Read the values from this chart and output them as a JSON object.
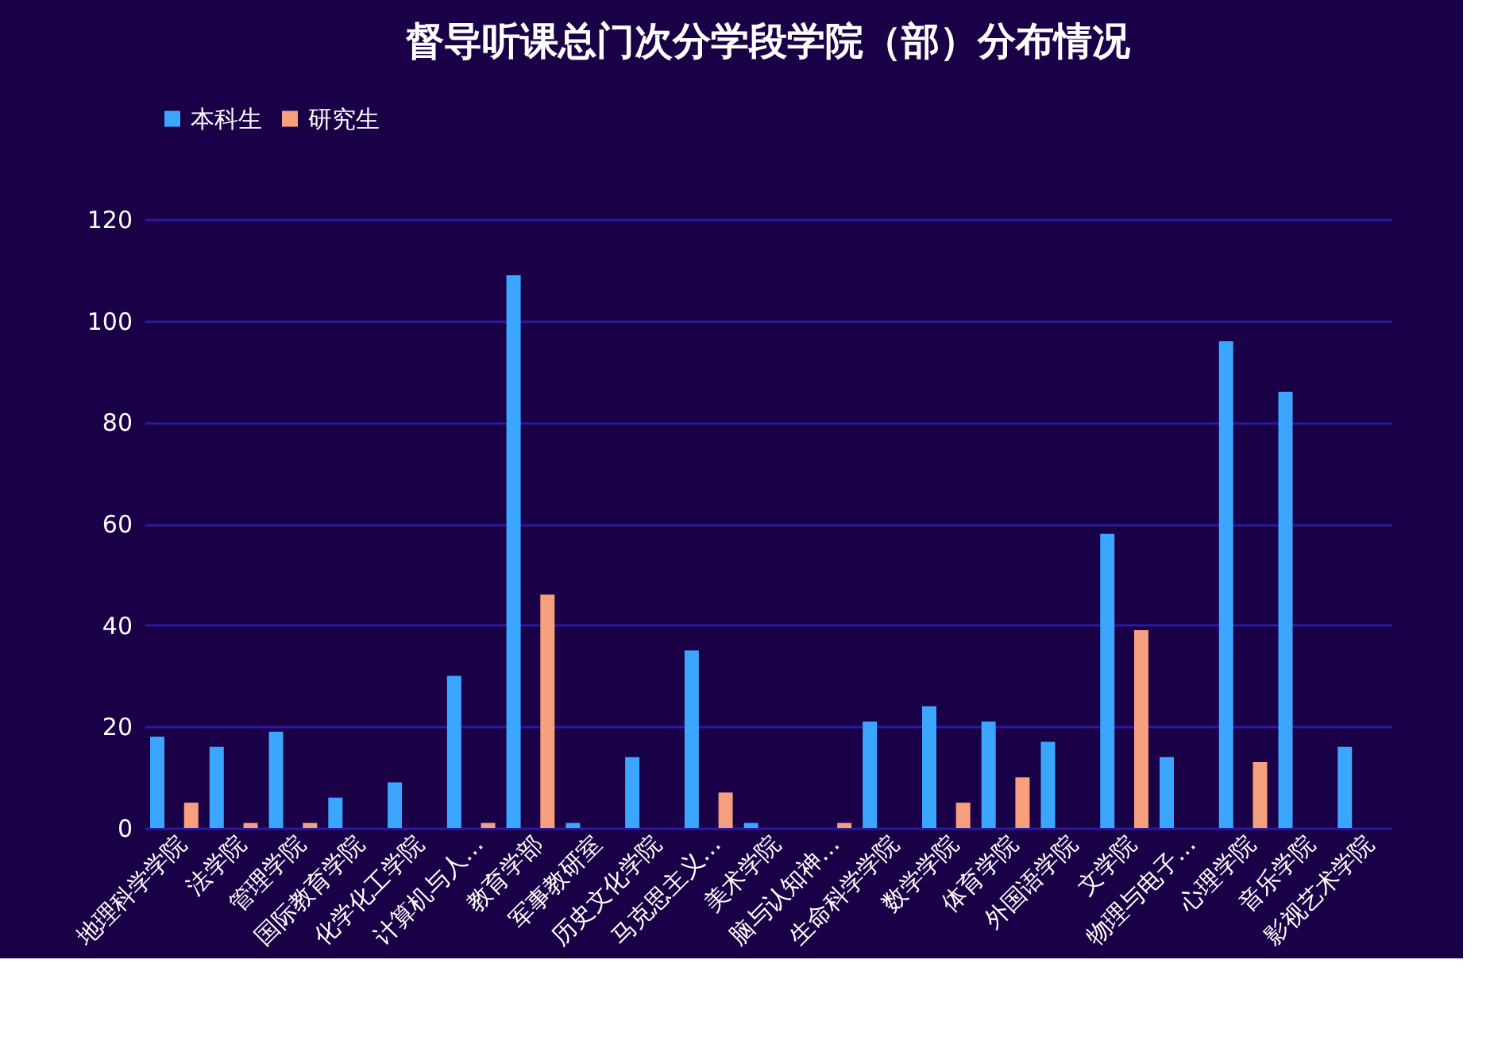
{
  "chart_data": {
    "type": "bar",
    "title": "督导听课总门次分学段学院（部）分布情况",
    "categories": [
      "地理科学学院",
      "法学院",
      "管理学院",
      "国际教育学院",
      "化学化工学院",
      "计算机与人…",
      "教育学部",
      "军事教研室",
      "历史文化学院",
      "马克思主义…",
      "美术学院",
      "脑与认知神…",
      "生命科学学院",
      "数学学院",
      "体育学院",
      "外国语学院",
      "文学院",
      "物理与电子…",
      "心理学院",
      "音乐学院",
      "影视艺术学院"
    ],
    "series": [
      {
        "name": "本科生",
        "color": "#3aa6ff",
        "values": [
          18,
          16,
          19,
          6,
          9,
          30,
          109,
          1,
          14,
          35,
          1,
          null,
          21,
          24,
          21,
          17,
          58,
          14,
          96,
          86,
          16
        ]
      },
      {
        "name": "研究生",
        "color": "#f7a07e",
        "values": [
          5,
          1,
          1,
          null,
          null,
          1,
          46,
          null,
          null,
          7,
          null,
          1,
          null,
          5,
          10,
          null,
          39,
          null,
          13,
          null,
          null
        ]
      }
    ],
    "ylim": [
      0,
      120
    ],
    "yticks": [
      0,
      20,
      40,
      60,
      80,
      100,
      120
    ],
    "grid": "y",
    "legend": "top"
  }
}
